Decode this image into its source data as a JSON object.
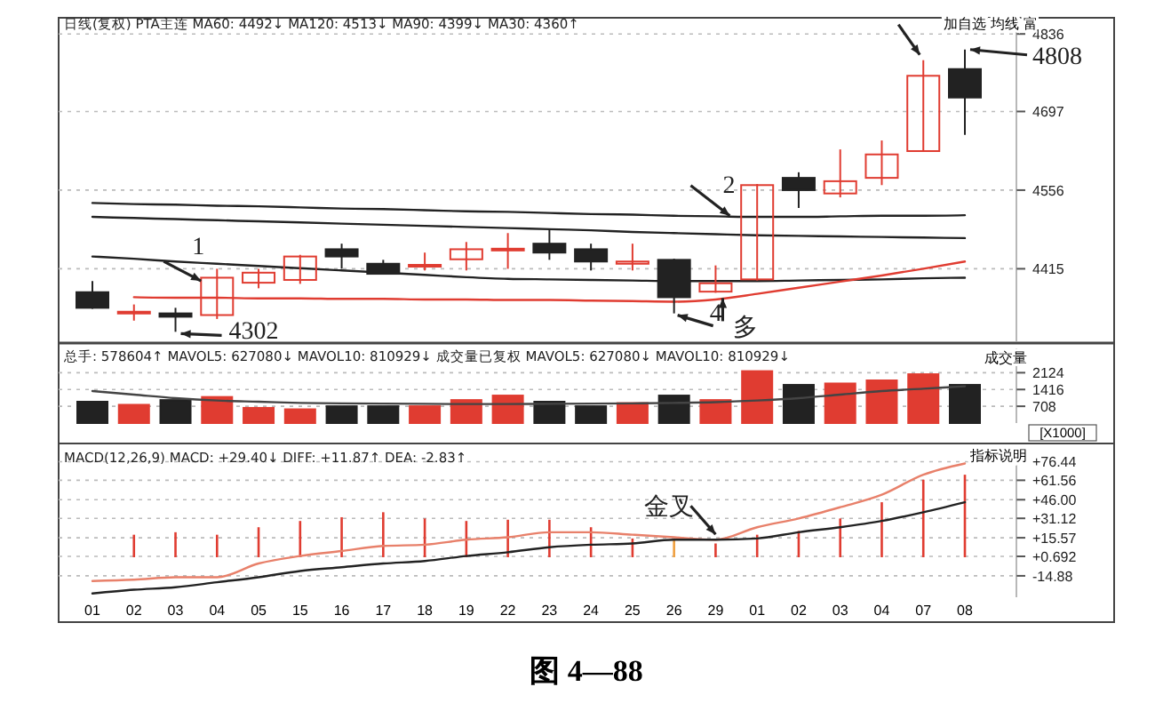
{
  "chart_data": [
    {
      "type": "candlestick",
      "subtitle": "日线(复权) PTA主连 MA60: 4492↓ MA120: 4513↓ MA90: 4399↓ MA30: 4360↑",
      "categories": [
        "01",
        "02",
        "03",
        "04",
        "05",
        "15",
        "16",
        "17",
        "18",
        "19",
        "22",
        "23",
        "24",
        "25",
        "26",
        "29",
        "01",
        "02",
        "03",
        "04",
        "07",
        "08"
      ],
      "ohlc": [
        [
          4373,
          4393,
          4343,
          4345
        ],
        [
          4336,
          4351,
          4322,
          4338
        ],
        [
          4335,
          4345,
          4302,
          4329
        ],
        [
          4332,
          4415,
          4325,
          4399
        ],
        [
          4390,
          4415,
          4380,
          4408
        ],
        [
          4395,
          4440,
          4388,
          4437
        ],
        [
          4450,
          4460,
          4415,
          4437
        ],
        [
          4424,
          4431,
          4405,
          4406
        ],
        [
          4420,
          4444,
          4412,
          4422
        ],
        [
          4432,
          4463,
          4412,
          4450
        ],
        [
          4449,
          4479,
          4415,
          4451
        ],
        [
          4460,
          4485,
          4431,
          4444
        ],
        [
          4450,
          4460,
          4412,
          4428
        ],
        [
          4424,
          4460,
          4412,
          4428
        ],
        [
          4431,
          4433,
          4335,
          4364
        ],
        [
          4374,
          4421,
          4372,
          4389
        ],
        [
          4396,
          4567,
          4394,
          4565
        ],
        [
          4578,
          4588,
          4524,
          4556
        ],
        [
          4550,
          4629,
          4543,
          4572
        ],
        [
          4578,
          4645,
          4565,
          4620
        ],
        [
          4626,
          4789,
          4626,
          4761
        ],
        [
          4773,
          4808,
          4655,
          4722
        ]
      ],
      "series": [
        {
          "type": "line",
          "color": "#222222",
          "values": [
            4533,
            4531,
            4530,
            4528,
            4527,
            4525,
            4523,
            4522,
            4520,
            4518,
            4517,
            4515,
            4513,
            4512,
            4510,
            4509,
            4508,
            4508,
            4509,
            4510,
            4510,
            4511
          ]
        },
        {
          "type": "line",
          "color": "#222222",
          "values": [
            4508,
            4506,
            4504,
            4502,
            4500,
            4498,
            4496,
            4494,
            4492,
            4490,
            4488,
            4486,
            4484,
            4481,
            4479,
            4477,
            4475,
            4474,
            4473,
            4472,
            4471,
            4470
          ]
        },
        {
          "type": "line",
          "color": "#222222",
          "values": [
            4437,
            4433,
            4428,
            4424,
            4420,
            4416,
            4412,
            4408,
            4404,
            4400,
            4397,
            4396,
            4395,
            4394,
            4393,
            4393,
            4393,
            4394,
            4395,
            4396,
            4398,
            4399
          ]
        },
        {
          "type": "line",
          "color": "#e03c31",
          "values": [
            null,
            4364,
            4363,
            4363,
            4362,
            4362,
            4361,
            4361,
            4360,
            4360,
            4359,
            4359,
            4358,
            4357,
            4356,
            4360,
            4370,
            4381,
            4392,
            4403,
            4415,
            4428
          ]
        }
      ],
      "ylim": [
        4285,
        4865
      ],
      "yticks": [
        4415,
        4556,
        4697,
        4836
      ],
      "grid": "y",
      "tick_labels": "y",
      "annotations": [
        {
          "text": "4302",
          "x": "03",
          "y": 4302
        },
        {
          "text": "4808",
          "x": "08",
          "y": 4808
        },
        {
          "text": "1",
          "x": "04",
          "y": 4390
        },
        {
          "text": "2",
          "x": "29",
          "y": 4510
        },
        {
          "text": "4",
          "x": "26",
          "y": 4335
        },
        {
          "text": "多",
          "x": "29",
          "y": 4372
        },
        "加自选 均线 富"
      ]
    },
    {
      "type": "bar",
      "subtitle": "总手: 578604↑ MAVOL5: 627080↓ MAVOL10: 810929↓ 成交量已复权 MAVOL5: 627080↓ MAVOL10: 810929↓",
      "ylabel": "[X1000]",
      "categories": [
        null,
        null,
        null,
        null,
        null,
        null,
        null,
        null,
        null,
        null,
        null,
        null,
        null,
        null,
        null,
        null,
        null,
        null,
        null,
        null,
        null,
        null
      ],
      "series": [
        {
          "type": "bar",
          "values": [
            900,
            770,
            970,
            1100,
            640,
            580,
            710,
            710,
            710,
            970,
            1160,
            900,
            710,
            840,
            1160,
            970,
            2190,
            1610,
            1670,
            1800,
            2060,
            1610
          ],
          "colors": [
            "#222222",
            "#e03c31",
            "#222222",
            "#e03c31",
            "#e03c31",
            "#e03c31",
            "#222222",
            "#222222",
            "#e03c31",
            "#e03c31",
            "#e03c31",
            "#222222",
            "#222222",
            "#e03c31",
            "#222222",
            "#e03c31",
            "#e03c31",
            "#222222",
            "#e03c31",
            "#e03c31",
            "#e03c31",
            "#222222"
          ]
        },
        {
          "type": "line",
          "color": "#444444",
          "values": [
            1350,
            1200,
            1050,
            950,
            900,
            850,
            830,
            820,
            810,
            800,
            800,
            810,
            820,
            830,
            850,
            880,
            950,
            1050,
            1200,
            1350,
            1450,
            1550
          ]
        }
      ],
      "ylim": [
        0,
        3150
      ],
      "yticks": [
        708,
        1416,
        2124
      ],
      "grid": "y",
      "tick_labels": "y",
      "annotations": [
        "成交量"
      ]
    },
    {
      "type": "bar",
      "subtitle": "MACD(12,26,9) MACD: +29.40↓ DIFF: +11.87↑ DEA: -2.83↑",
      "categories": [
        "01",
        "02",
        "03",
        "04",
        "05",
        "15",
        "16",
        "17",
        "18",
        "19",
        "22",
        "23",
        "24",
        "25",
        "26",
        "29",
        "01",
        "02",
        "03",
        "04",
        "07",
        "08"
      ],
      "series": [
        {
          "type": "bar",
          "values": [
            null,
            18,
            20,
            18,
            24,
            29,
            32,
            36,
            31,
            29,
            30,
            30,
            24,
            15,
            14,
            11,
            18,
            21,
            31,
            44,
            62,
            66
          ],
          "colors": [
            null,
            "#e03c31",
            "#e03c31",
            "#e03c31",
            "#e03c31",
            "#e03c31",
            "#e03c31",
            "#e03c31",
            "#e03c31",
            "#e03c31",
            "#e03c31",
            "#e03c31",
            "#e03c31",
            "#e03c31",
            "#f0a040",
            "#e03c31",
            "#e03c31",
            "#e03c31",
            "#e03c31",
            "#e03c31",
            "#e03c31",
            "#e03c31"
          ]
        },
        {
          "type": "line",
          "color": "#e8806a",
          "values": [
            -19,
            -18,
            -16,
            -16,
            -5,
            1,
            5,
            9,
            10,
            14,
            16,
            20,
            20,
            18,
            16,
            14,
            24,
            31,
            40,
            50,
            66,
            75
          ]
        },
        {
          "type": "line",
          "color": "#222222",
          "values": [
            -29,
            -26,
            -24,
            -20,
            -16,
            -11,
            -8,
            -5,
            -3,
            1,
            4,
            8,
            10,
            11,
            14,
            14,
            15,
            20,
            24,
            29,
            36,
            44
          ]
        }
      ],
      "ylim": [
        -32,
        86
      ],
      "yticks": [
        {
          "value": -14.88,
          "label": "-14.88"
        },
        {
          "value": 0.692,
          "label": "+0.692"
        },
        {
          "value": 15.57,
          "label": "+15.57"
        },
        {
          "value": 31.12,
          "label": "+31.12"
        },
        {
          "value": 46,
          "label": "+46.00"
        },
        {
          "value": 61.56,
          "label": "+61.56"
        },
        {
          "value": 76.44,
          "label": "+76.44"
        }
      ],
      "grid": "y",
      "annotations": [
        {
          "text": "金叉",
          "x": "29",
          "y": 14
        },
        "指标说明",
        "图 4—88"
      ]
    }
  ]
}
